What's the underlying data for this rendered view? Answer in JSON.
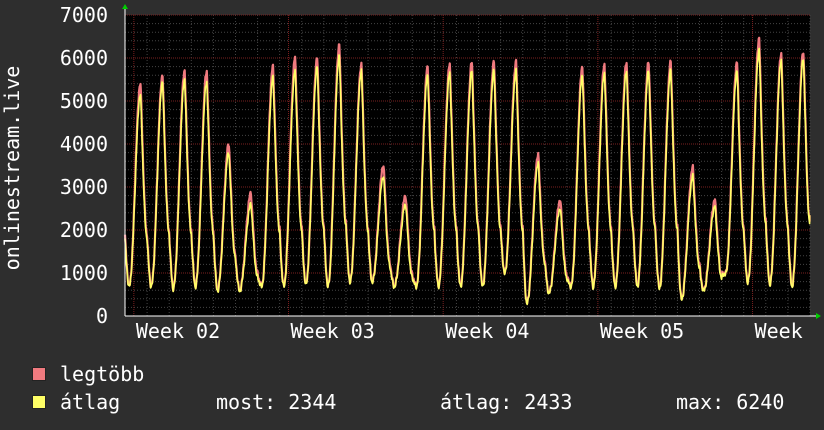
{
  "chart_data": {
    "type": "line",
    "ylabel": "onlinestream.live",
    "ylim": [
      0,
      7000
    ],
    "yticks": [
      0,
      1000,
      2000,
      3000,
      4000,
      5000,
      6000,
      7000
    ],
    "xticks": [
      "Week 02",
      "Week 03",
      "Week 04",
      "Week 05",
      "Week"
    ],
    "x_unit": "day",
    "x_range": [
      0,
      31
    ],
    "xtick_positions": [
      0.4,
      7.4,
      14.4,
      21.4,
      28.4
    ],
    "grid": true,
    "daily_peaks": {
      "legtobb": [
        5400,
        5600,
        5700,
        5700,
        4000,
        2850,
        5800,
        6000,
        6000,
        6300,
        5850,
        3500,
        2800,
        5800,
        5850,
        5900,
        5900,
        5900,
        3750,
        2700,
        5800,
        5850,
        5900,
        5900,
        5900,
        3450,
        2700,
        5900,
        6450,
        6100,
        6150
      ],
      "atlag": [
        5150,
        5450,
        5500,
        5450,
        3800,
        2600,
        5550,
        5700,
        5800,
        6050,
        5700,
        3250,
        2600,
        5600,
        5650,
        5700,
        5700,
        5700,
        3550,
        2500,
        5600,
        5650,
        5700,
        5700,
        5700,
        3250,
        2550,
        5700,
        6200,
        5950,
        6000
      ]
    },
    "daily_lows": [
      700,
      700,
      650,
      700,
      600,
      600,
      700,
      700,
      750,
      700,
      800,
      800,
      700,
      700,
      700,
      700,
      700,
      1000,
      300,
      550,
      700,
      700,
      700,
      700,
      650,
      400,
      600,
      1000,
      800,
      750,
      700
    ],
    "end_value": 2344,
    "series": [
      {
        "name": "legtöbb",
        "color": "#f07a7f"
      },
      {
        "name": "átlag",
        "color": "#ffff66"
      }
    ]
  },
  "legend": {
    "max_label": "legtöbb",
    "avg_label": "átlag",
    "now_text": "most: 2344",
    "avg_text": "átlag: 2433",
    "max_text": "max: 6240"
  },
  "colors": {
    "background": "#2e2e2e",
    "plot_bg": "#000000",
    "grid_major": "#7a1f1f",
    "grid_minor": "#444444",
    "axis_arrow": "#00cc00"
  }
}
